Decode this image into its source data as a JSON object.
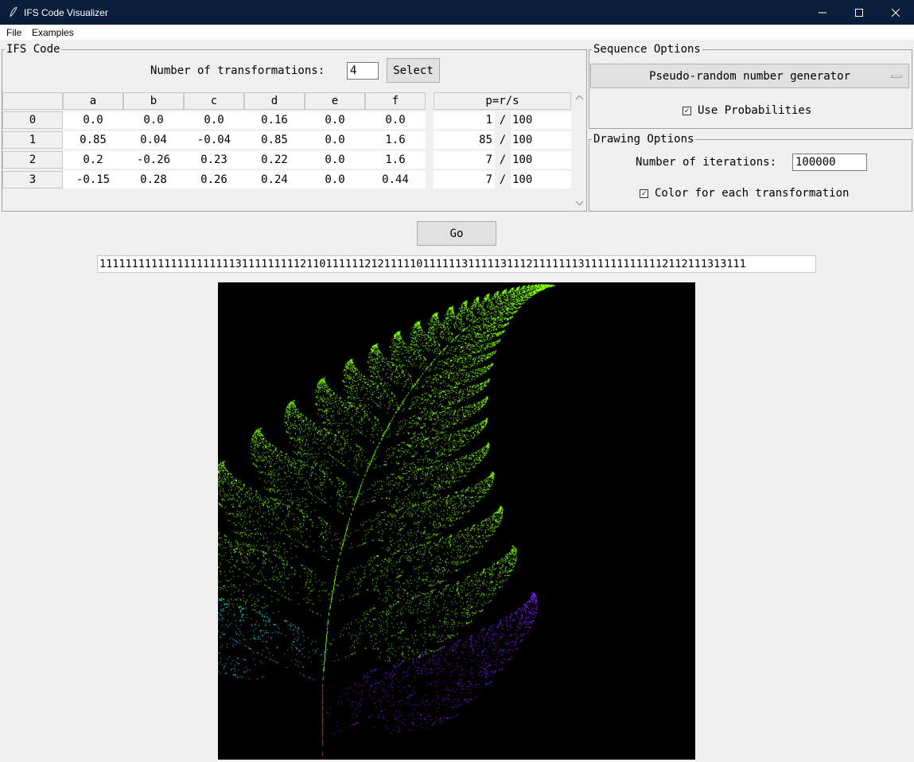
{
  "window": {
    "title": "IFS Code Visualizer"
  },
  "menu": [
    "File",
    "Examples"
  ],
  "ifs": {
    "frame_label": "IFS Code",
    "num_label": "Number of transformations:",
    "num_value": "4",
    "select_label": "Select",
    "columns": [
      "a",
      "b",
      "c",
      "d",
      "e",
      "f"
    ],
    "prob_header": "p=r/s",
    "rows": [
      {
        "index": "0",
        "values": [
          "0.0",
          "0.0",
          "0.0",
          "0.16",
          "0.0",
          "0.0"
        ],
        "r": "1",
        "s": "100"
      },
      {
        "index": "1",
        "values": [
          "0.85",
          "0.04",
          "-0.04",
          "0.85",
          "0.0",
          "1.6"
        ],
        "r": "85",
        "s": "100"
      },
      {
        "index": "2",
        "values": [
          "0.2",
          "-0.26",
          "0.23",
          "0.22",
          "0.0",
          "1.6"
        ],
        "r": "7",
        "s": "100"
      },
      {
        "index": "3",
        "values": [
          "-0.15",
          "0.28",
          "0.26",
          "0.24",
          "0.0",
          "0.44"
        ],
        "r": "7",
        "s": "100"
      }
    ],
    "slash": "/"
  },
  "sequence": {
    "frame_label": "Sequence Options",
    "generator": "Pseudo-random number generator",
    "use_prob_label": "Use Probabilities",
    "use_prob_checked": true
  },
  "drawing": {
    "frame_label": "Drawing Options",
    "iter_label": "Number of iterations:",
    "iter_value": "100000",
    "color_label": "Color for each transformation",
    "color_checked": true
  },
  "go_label": "Go",
  "sequence_output": "1111111111111111111113111111111211011111121211111011111131111131112111111131111111111112112111313111",
  "colors": {
    "titlebar": "#0a1e3b",
    "t0": "#ff2a00",
    "t1": "#7fff00",
    "t2": "#19e6ff",
    "t3": "#8020ff"
  }
}
